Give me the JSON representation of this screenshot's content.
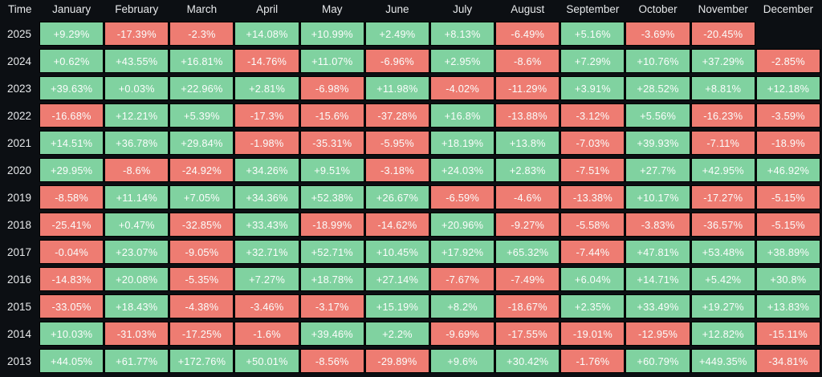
{
  "table": {
    "corner_label": "Time"
  },
  "colors": {
    "background": "#0c0f13",
    "positive_bg": "#80d2a0",
    "negative_bg": "#ee7c72",
    "grid_line": "#000000",
    "header_text": "#e6e8ea",
    "cell_text": "#fbfdfc"
  },
  "chart_data": {
    "type": "heatmap",
    "title": "",
    "xlabel": "",
    "ylabel": "Time",
    "legend_position": "none",
    "value_format": "signed percent, green positive / red negative, blank cell = no data",
    "x_categories": [
      "January",
      "February",
      "March",
      "April",
      "May",
      "June",
      "July",
      "August",
      "September",
      "October",
      "November",
      "December"
    ],
    "y_categories": [
      "2025",
      "2024",
      "2023",
      "2022",
      "2021",
      "2020",
      "2019",
      "2018",
      "2017",
      "2016",
      "2015",
      "2014",
      "2013"
    ],
    "values_percent": [
      [
        9.29,
        -17.39,
        -2.3,
        14.08,
        10.99,
        2.49,
        8.13,
        -6.49,
        5.16,
        -3.69,
        -20.45,
        null
      ],
      [
        0.62,
        43.55,
        16.81,
        -14.76,
        11.07,
        -6.96,
        2.95,
        -8.6,
        7.29,
        10.76,
        37.29,
        -2.85
      ],
      [
        39.63,
        0.03,
        22.96,
        2.81,
        -6.98,
        11.98,
        -4.02,
        -11.29,
        3.91,
        28.52,
        8.81,
        12.18
      ],
      [
        -16.68,
        12.21,
        5.39,
        -17.3,
        -15.6,
        -37.28,
        16.8,
        -13.88,
        -3.12,
        5.56,
        -16.23,
        -3.59
      ],
      [
        14.51,
        36.78,
        29.84,
        -1.98,
        -35.31,
        -5.95,
        18.19,
        13.8,
        -7.03,
        39.93,
        -7.11,
        -18.9
      ],
      [
        29.95,
        -8.6,
        -24.92,
        34.26,
        9.51,
        -3.18,
        24.03,
        2.83,
        -7.51,
        27.7,
        42.95,
        46.92
      ],
      [
        -8.58,
        11.14,
        7.05,
        34.36,
        52.38,
        26.67,
        -6.59,
        -4.6,
        -13.38,
        10.17,
        -17.27,
        -5.15
      ],
      [
        -25.41,
        0.47,
        -32.85,
        33.43,
        -18.99,
        -14.62,
        20.96,
        -9.27,
        -5.58,
        -3.83,
        -36.57,
        -5.15
      ],
      [
        -0.04,
        23.07,
        -9.05,
        32.71,
        52.71,
        10.45,
        17.92,
        65.32,
        -7.44,
        47.81,
        53.48,
        38.89
      ],
      [
        -14.83,
        20.08,
        -5.35,
        7.27,
        18.78,
        27.14,
        -7.67,
        -7.49,
        6.04,
        14.71,
        5.42,
        30.8
      ],
      [
        -33.05,
        18.43,
        -4.38,
        -3.46,
        -3.17,
        15.19,
        8.2,
        -18.67,
        2.35,
        33.49,
        19.27,
        13.83
      ],
      [
        10.03,
        -31.03,
        -17.25,
        -1.6,
        39.46,
        2.2,
        -9.69,
        -17.55,
        -19.01,
        -12.95,
        12.82,
        -15.11
      ],
      [
        44.05,
        61.77,
        172.76,
        50.01,
        -8.56,
        -29.89,
        9.6,
        30.42,
        -1.76,
        60.79,
        449.35,
        -34.81
      ]
    ]
  }
}
